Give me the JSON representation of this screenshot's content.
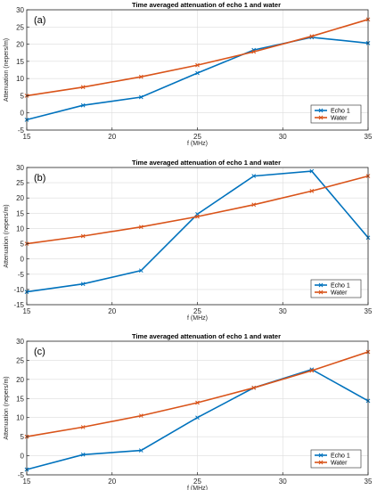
{
  "chart_data": [
    {
      "type": "line",
      "panel_label": "(a)",
      "title": "Time averaged attenuation of echo 1 and water",
      "xlabel": "f (MHz)",
      "ylabel": "Attenuation (nepers/m)",
      "xlim": [
        15,
        35
      ],
      "ylim": [
        -5,
        30
      ],
      "xticks": [
        15,
        20,
        25,
        30,
        35
      ],
      "yticks": [
        -5,
        0,
        5,
        10,
        15,
        20,
        25,
        30
      ],
      "grid": true,
      "legend_position": "bottom-right",
      "series": [
        {
          "name": "Echo 1",
          "color": "#0072BD",
          "x": [
            15,
            18.3,
            21.7,
            25,
            28.3,
            31.7,
            35
          ],
          "y": [
            -2,
            2.2,
            4.6,
            11.6,
            18.3,
            22,
            20.3
          ]
        },
        {
          "name": "Water",
          "color": "#D95319",
          "x": [
            15,
            18.3,
            21.7,
            25,
            28.3,
            31.7,
            35
          ],
          "y": [
            5,
            7.5,
            10.5,
            13.9,
            17.8,
            22.3,
            27.2
          ]
        }
      ]
    },
    {
      "type": "line",
      "panel_label": "(b)",
      "title": "Time averaged attenuation of echo 1 and water",
      "xlabel": "f (MHz)",
      "ylabel": "Attenuation (nepers/m)",
      "xlim": [
        15,
        35
      ],
      "ylim": [
        -15,
        30
      ],
      "xticks": [
        15,
        20,
        25,
        30,
        35
      ],
      "yticks": [
        -15,
        -10,
        -5,
        0,
        5,
        10,
        15,
        20,
        25,
        30
      ],
      "grid": true,
      "legend_position": "bottom-right",
      "series": [
        {
          "name": "Echo 1",
          "color": "#0072BD",
          "x": [
            15,
            18.3,
            21.7,
            25,
            28.3,
            31.7,
            35
          ],
          "y": [
            -10.8,
            -8.2,
            -3.8,
            14.7,
            27.2,
            28.8,
            7
          ]
        },
        {
          "name": "Water",
          "color": "#D95319",
          "x": [
            15,
            18.3,
            21.7,
            25,
            28.3,
            31.7,
            35
          ],
          "y": [
            5,
            7.5,
            10.5,
            13.9,
            17.8,
            22.3,
            27.2
          ]
        }
      ]
    },
    {
      "type": "line",
      "panel_label": "(c)",
      "title": "Time averaged attenuation of echo 1 and water",
      "xlabel": "f (MHz)",
      "ylabel": "Attenuation (nepers/m)",
      "xlim": [
        15,
        35
      ],
      "ylim": [
        -5,
        30
      ],
      "xticks": [
        15,
        20,
        25,
        30,
        35
      ],
      "yticks": [
        -5,
        0,
        5,
        10,
        15,
        20,
        25,
        30
      ],
      "grid": true,
      "legend_position": "bottom-right",
      "series": [
        {
          "name": "Echo 1",
          "color": "#0072BD",
          "x": [
            15,
            18.3,
            21.7,
            25,
            28.3,
            31.7,
            35
          ],
          "y": [
            -3.6,
            0.3,
            1.4,
            10,
            17.8,
            22.6,
            14.4
          ]
        },
        {
          "name": "Water",
          "color": "#D95319",
          "x": [
            15,
            18.3,
            21.7,
            25,
            28.3,
            31.7,
            35
          ],
          "y": [
            5,
            7.5,
            10.5,
            13.9,
            17.8,
            22.3,
            27.2
          ]
        }
      ]
    }
  ]
}
